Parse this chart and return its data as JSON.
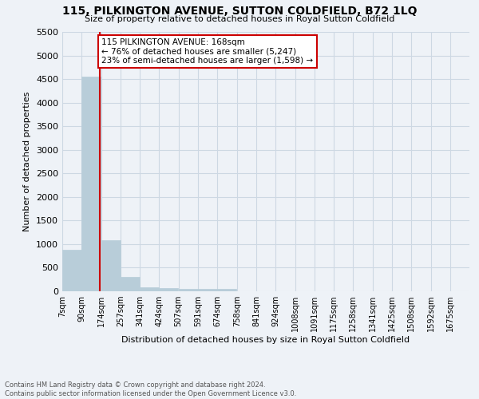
{
  "title": "115, PILKINGTON AVENUE, SUTTON COLDFIELD, B72 1LQ",
  "subtitle": "Size of property relative to detached houses in Royal Sutton Coldfield",
  "xlabel": "Distribution of detached houses by size in Royal Sutton Coldfield",
  "ylabel": "Number of detached properties",
  "footer_line1": "Contains HM Land Registry data © Crown copyright and database right 2024.",
  "footer_line2": "Contains public sector information licensed under the Open Government Licence v3.0.",
  "annotation_line1": "115 PILKINGTON AVENUE: 168sqm",
  "annotation_line2": "← 76% of detached houses are smaller (5,247)",
  "annotation_line3": "23% of semi-detached houses are larger (1,598) →",
  "property_size": 168,
  "bar_color": "#b8cdd9",
  "bar_edge_color": "#b8cdd9",
  "property_line_color": "#cc0000",
  "annotation_box_edge_color": "#cc0000",
  "grid_color": "#cdd8e3",
  "background_color": "#eef2f7",
  "categories": [
    "7sqm",
    "90sqm",
    "174sqm",
    "257sqm",
    "341sqm",
    "424sqm",
    "507sqm",
    "591sqm",
    "674sqm",
    "758sqm",
    "841sqm",
    "924sqm",
    "1008sqm",
    "1091sqm",
    "1175sqm",
    "1258sqm",
    "1341sqm",
    "1425sqm",
    "1508sqm",
    "1592sqm",
    "1675sqm"
  ],
  "bin_starts": [
    7,
    90,
    174,
    257,
    341,
    424,
    507,
    591,
    674,
    758,
    841,
    924,
    1008,
    1091,
    1175,
    1258,
    1341,
    1425,
    1508,
    1592,
    1675
  ],
  "values": [
    880,
    4560,
    1080,
    310,
    90,
    60,
    50,
    50,
    50,
    0,
    0,
    0,
    0,
    0,
    0,
    0,
    0,
    0,
    0,
    0,
    0
  ],
  "ylim": [
    0,
    5500
  ],
  "yticks": [
    0,
    500,
    1000,
    1500,
    2000,
    2500,
    3000,
    3500,
    4000,
    4500,
    5000,
    5500
  ]
}
